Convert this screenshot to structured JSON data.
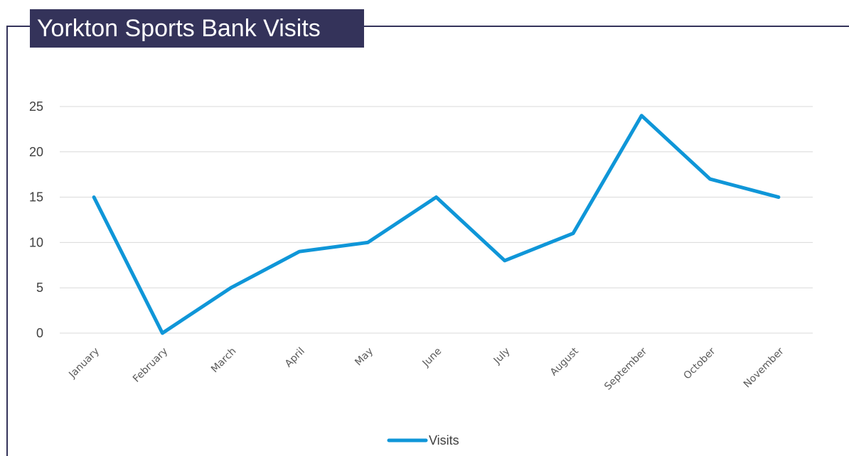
{
  "chart_data": {
    "type": "line",
    "title": "Yorkton Sports Bank Visits",
    "categories": [
      "January",
      "February",
      "March",
      "April",
      "May",
      "June",
      "July",
      "August",
      "September",
      "October",
      "November"
    ],
    "series": [
      {
        "name": "Visits",
        "values": [
          15,
          0,
          5,
          9,
          10,
          15,
          8,
          11,
          24,
          17,
          15
        ]
      }
    ],
    "ylim": [
      0,
      25
    ],
    "yticks": [
      "0",
      "5",
      "10",
      "15",
      "20",
      "25"
    ],
    "xlabel": "",
    "ylabel": "",
    "grid": true,
    "legend_position": "bottom",
    "colors": {
      "series": "#0f96d8",
      "grid": "#d9d9d9",
      "title_bg": "#34335a"
    }
  }
}
